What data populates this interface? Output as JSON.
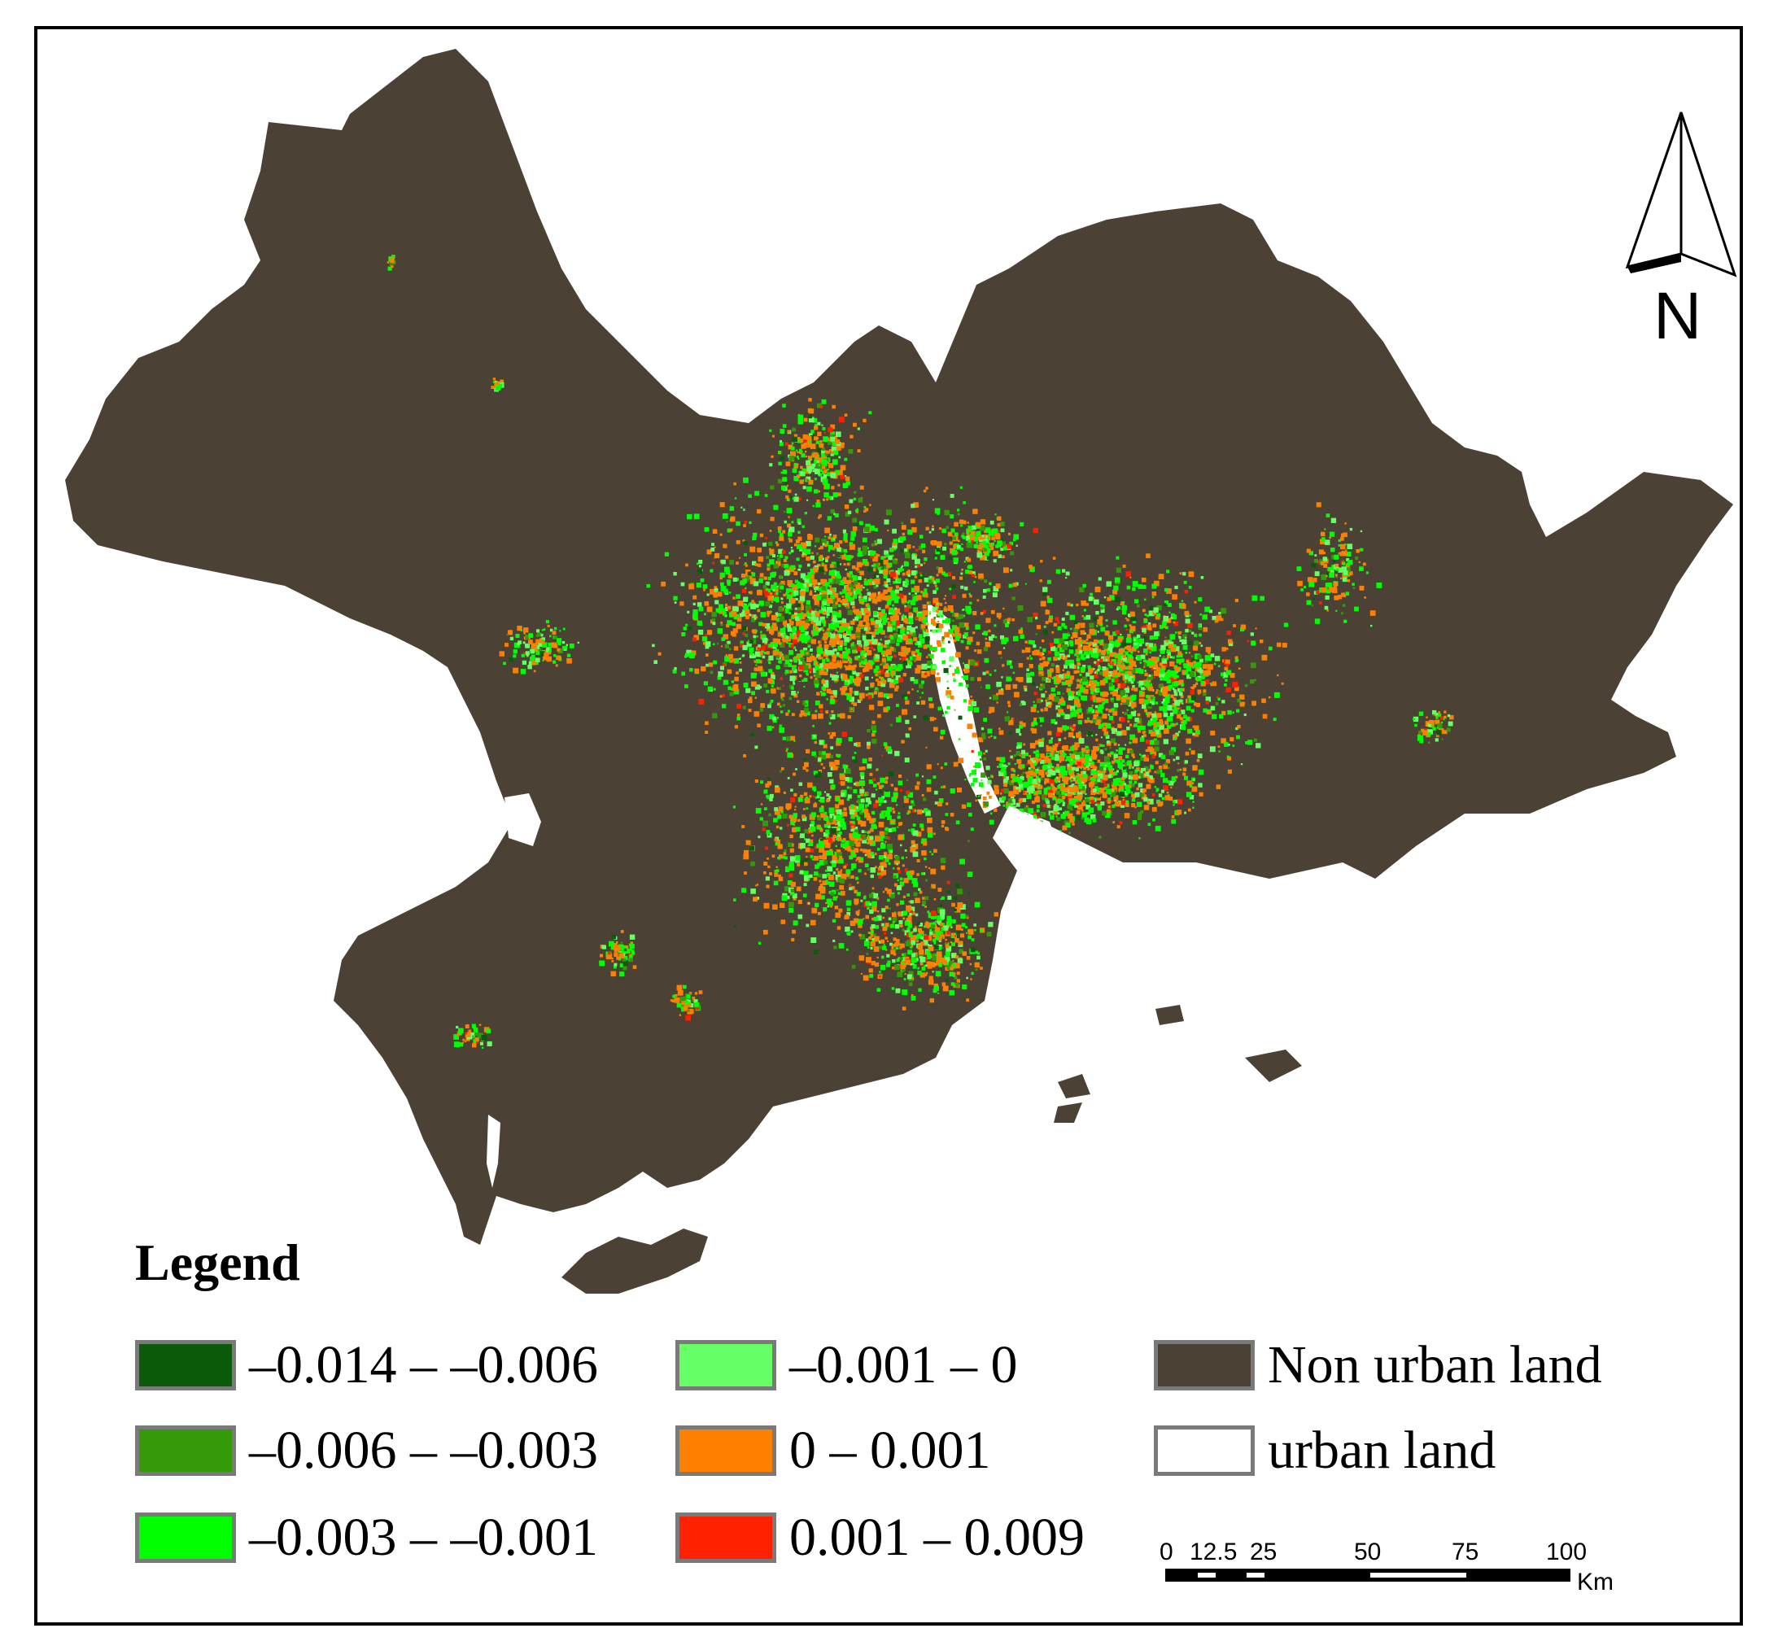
{
  "legend": {
    "title": "Legend",
    "items": [
      {
        "label": "–0.014 – –0.006",
        "color": "#0a5a0a"
      },
      {
        "label": "–0.006 – –0.003",
        "color": "#349a0a"
      },
      {
        "label": "–0.003 – –0.001",
        "color": "#00ff00"
      },
      {
        "label": "–0.001 – 0",
        "color": "#66ff66"
      },
      {
        "label": "0 – 0.001",
        "color": "#ff8000"
      },
      {
        "label": "0.001 – 0.009",
        "color": "#ff2000"
      },
      {
        "label": "Non urban land",
        "color": "#4b4235"
      },
      {
        "label": "urban land",
        "color": "#ffffff"
      }
    ]
  },
  "north_arrow": {
    "label": "N"
  },
  "scale_bar": {
    "ticks": [
      "0",
      "12.5",
      "25",
      "50",
      "75",
      "100"
    ],
    "unit": "Km"
  }
}
